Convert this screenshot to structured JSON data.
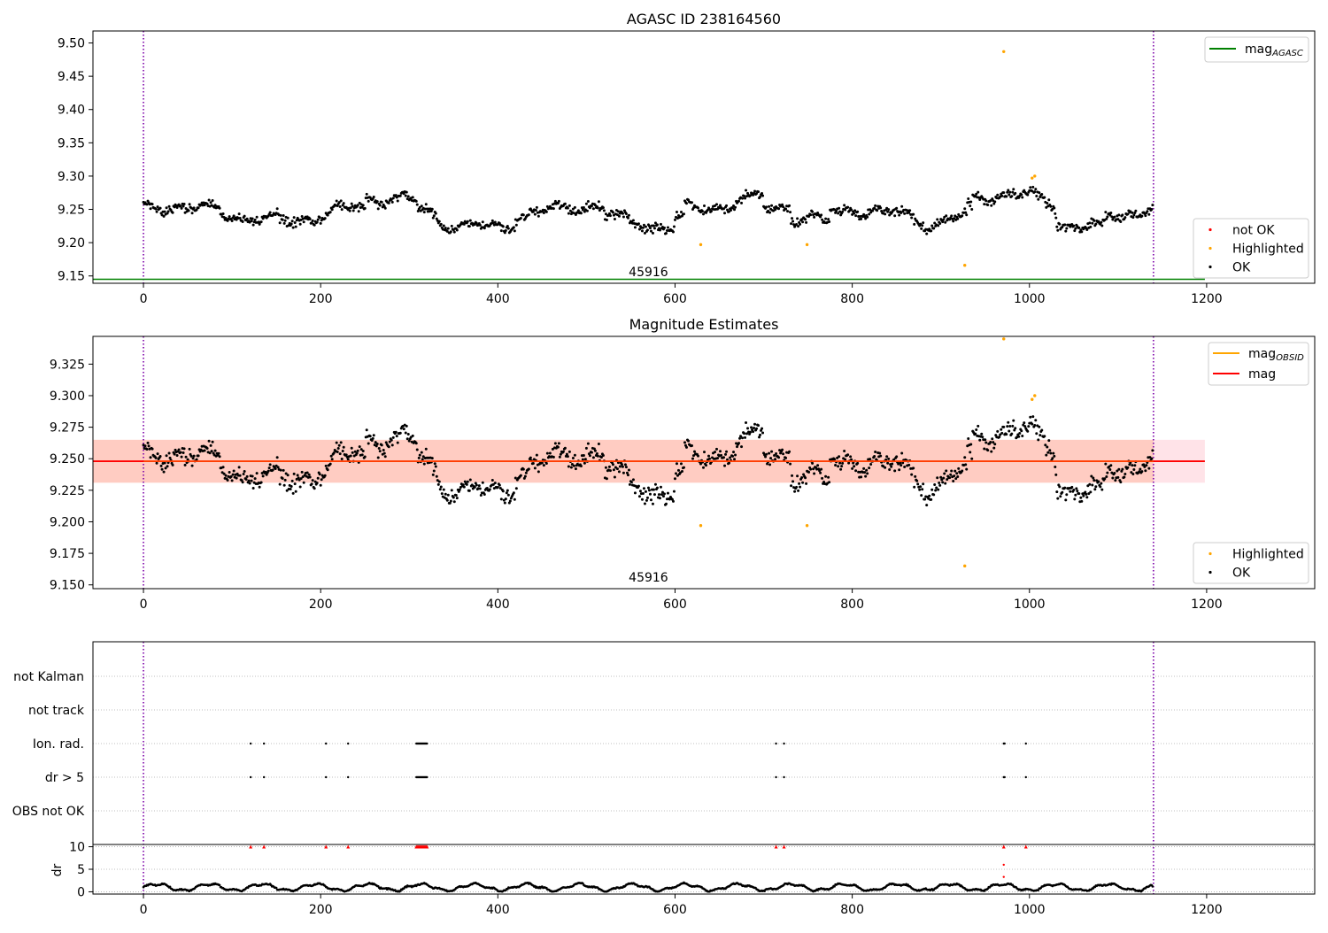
{
  "chart_data": [
    {
      "type": "scatter",
      "title": "AGASC ID 238164560",
      "xlim": [
        -57,
        1322
      ],
      "ylim": [
        9.139,
        9.518
      ],
      "x_ticks": [
        "0",
        "200",
        "400",
        "600",
        "800",
        "1000",
        "1200"
      ],
      "y_ticks": [
        "9.15",
        "9.20",
        "9.25",
        "9.30",
        "9.35",
        "9.40",
        "9.45",
        "9.50"
      ],
      "vlines": [
        0,
        1140
      ],
      "obsid_label": "45916",
      "obsid_label_x": 570,
      "mag_agasc": 9.145,
      "mag_agasc_x_range": [
        -57,
        1198
      ],
      "n_points": 1140,
      "ok_range": [
        9.2,
        9.29
      ],
      "series": [
        {
          "name": "not OK",
          "color": "#ff0000",
          "points": []
        },
        {
          "name": "Highlighted",
          "color": "#ffa500",
          "points": [
            [
              629,
              9.197
            ],
            [
              749,
              9.197
            ],
            [
              927,
              9.166
            ],
            [
              971,
              9.487
            ],
            [
              1003,
              9.297
            ],
            [
              1006,
              9.3
            ]
          ]
        },
        {
          "name": "OK",
          "color": "#000000"
        }
      ],
      "legend_upper": [
        {
          "label": "mag_AGASC",
          "main": "mag",
          "sub": "AGASC",
          "color": "#008000"
        }
      ],
      "legend_lower": [
        {
          "label": "not OK",
          "color": "#ff0000"
        },
        {
          "label": "Highlighted",
          "color": "#ffa500"
        },
        {
          "label": "OK",
          "color": "#000000"
        }
      ]
    },
    {
      "type": "scatter",
      "title": "Magnitude Estimates",
      "xlim": [
        -57,
        1322
      ],
      "ylim": [
        9.147,
        9.347
      ],
      "x_ticks": [
        "0",
        "200",
        "400",
        "600",
        "800",
        "1000",
        "1200"
      ],
      "y_ticks": [
        "9.150",
        "9.175",
        "9.200",
        "9.225",
        "9.250",
        "9.275",
        "9.300",
        "9.325"
      ],
      "vlines": [
        0,
        1140
      ],
      "obsid_label": "45916",
      "obsid_label_x": 570,
      "mag": 9.248,
      "mag_band": [
        9.231,
        9.265
      ],
      "mag_obsid": 9.248,
      "band_x_range": [
        -57,
        1198
      ],
      "series": [
        {
          "name": "Highlighted",
          "color": "#ffa500",
          "points": [
            [
              629,
              9.197
            ],
            [
              749,
              9.197
            ],
            [
              927,
              9.165
            ],
            [
              971,
              9.345
            ],
            [
              1003,
              9.297
            ],
            [
              1006,
              9.3
            ]
          ]
        },
        {
          "name": "OK",
          "color": "#000000"
        }
      ],
      "legend_upper": [
        {
          "label": "mag_OBSID",
          "main": "mag",
          "sub": "OBSID",
          "color": "#ffa500"
        },
        {
          "label": "mag",
          "main": "mag",
          "sub": "",
          "color": "#ff0000"
        }
      ],
      "legend_lower": [
        {
          "label": "Highlighted",
          "color": "#ffa500"
        },
        {
          "label": "OK",
          "color": "#000000"
        }
      ]
    },
    {
      "type": "scatter",
      "xlim": [
        -57,
        1322
      ],
      "flags": [
        "not Kalman",
        "not track",
        "Ion. rad.",
        "dr > 5",
        "OBS not OK"
      ],
      "flag_points": {
        "Ion. rad.": [
          121,
          136,
          206,
          231,
          308,
          309,
          310,
          311,
          312,
          313,
          314,
          315,
          316,
          317,
          318,
          319,
          320,
          714,
          723,
          971,
          972,
          996
        ],
        "dr > 5": [
          121,
          136,
          206,
          231,
          308,
          309,
          310,
          311,
          312,
          313,
          314,
          315,
          316,
          317,
          318,
          319,
          320,
          714,
          723,
          971,
          972,
          996
        ]
      },
      "dr_ylabel": "dr",
      "dr_ticks": [
        "0",
        "5",
        "10"
      ],
      "dr_ylim": [
        -0.5,
        10.5
      ],
      "dr_clipped_points": [
        121,
        136,
        206,
        231,
        308,
        309,
        310,
        311,
        312,
        313,
        314,
        315,
        316,
        317,
        318,
        319,
        320,
        714,
        723,
        971,
        996
      ],
      "dr_extra_red": [
        [
          971,
          6.0
        ],
        [
          971,
          3.3
        ]
      ],
      "dr_clip_color": "#ff0000",
      "x_ticks": [
        "0",
        "200",
        "400",
        "600",
        "800",
        "1000",
        "1200"
      ],
      "vlines": [
        0,
        1140
      ]
    }
  ]
}
